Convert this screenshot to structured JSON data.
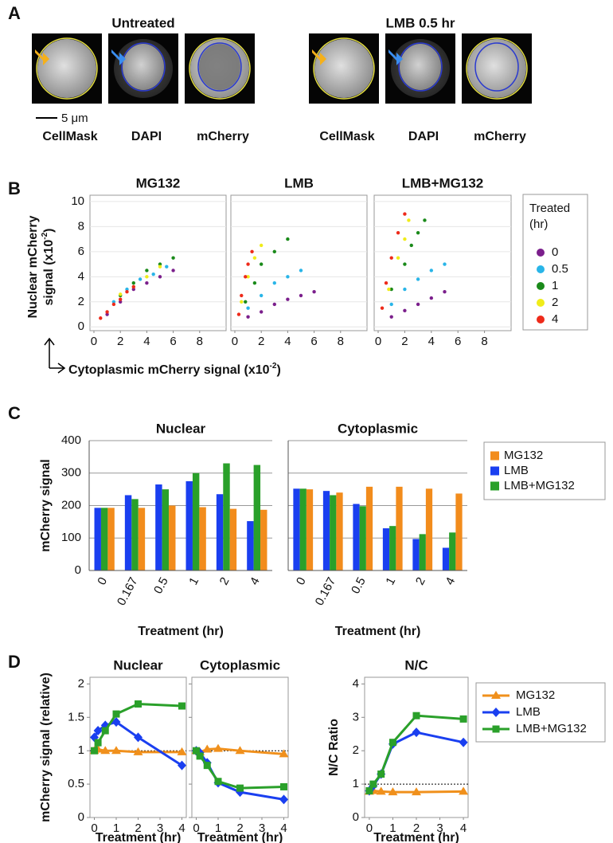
{
  "panels": [
    "A",
    "B",
    "C",
    "D"
  ],
  "panel_a": {
    "groups": [
      {
        "title": "Untreated",
        "channels": [
          "CellMask",
          "DAPI",
          "mCherry"
        ]
      },
      {
        "title": "LMB 0.5 hr",
        "channels": [
          "CellMask",
          "DAPI",
          "mCherry"
        ]
      }
    ],
    "scale_bar": "5 μm"
  },
  "chart_data": [
    {
      "type": "scatter",
      "title": "MG132",
      "xlim": [
        -0.3,
        10
      ],
      "xticks": [
        0,
        2,
        4,
        6,
        8
      ],
      "ylim": [
        -0.3,
        10.5
      ],
      "yticks": [
        0,
        2,
        4,
        6,
        8,
        10
      ],
      "grid": true,
      "y_label": {
        "line1": "Nuclear mCherry",
        "line2": "signal (x10",
        "sup": "-2",
        "end": ")"
      },
      "x_label": {
        "text": "Cytoplasmic mCherry signal (x10",
        "sup": "-2",
        "end": ")"
      },
      "legend": "outside right",
      "legend_title": [
        "Treated",
        "(hr)"
      ],
      "series": [
        {
          "name": "0",
          "color": "#7b1f8c",
          "x": [
            1,
            2,
            3,
            4,
            5,
            6
          ],
          "y": [
            1,
            2,
            3,
            3.5,
            4,
            4.5
          ]
        },
        {
          "name": "0.5",
          "color": "#29b5e8",
          "x": [
            1.5,
            2.5,
            3.5,
            4.5,
            5.5
          ],
          "y": [
            2,
            3,
            3.8,
            4.2,
            4.8
          ]
        },
        {
          "name": "1",
          "color": "#1a8a1a",
          "x": [
            2,
            3,
            4,
            5,
            6
          ],
          "y": [
            2.5,
            3.5,
            4.5,
            5,
            5.5
          ]
        },
        {
          "name": "2",
          "color": "#f0ec1a",
          "x": [
            2,
            3,
            4,
            5
          ],
          "y": [
            2.6,
            3.2,
            4,
            4.8
          ]
        },
        {
          "name": "4",
          "color": "#ee2a1a",
          "x": [
            0.5,
            1,
            1.5,
            2,
            2.5,
            3
          ],
          "y": [
            0.7,
            1.2,
            1.8,
            2.2,
            2.8,
            3.2
          ]
        }
      ]
    },
    {
      "type": "scatter",
      "title": "LMB",
      "xlim": [
        -0.3,
        10
      ],
      "xticks": [
        0,
        2,
        4,
        6,
        8
      ],
      "ylim": [
        -0.3,
        10.5
      ],
      "yticks": [
        0,
        2,
        4,
        6,
        8,
        10
      ],
      "grid": true,
      "show_ytick_labels": false,
      "series": [
        {
          "color": "#7b1f8c",
          "x": [
            1,
            2,
            3,
            4,
            5,
            6
          ],
          "y": [
            0.8,
            1.2,
            1.8,
            2.2,
            2.5,
            2.8
          ]
        },
        {
          "color": "#29b5e8",
          "x": [
            1,
            2,
            3,
            4,
            5
          ],
          "y": [
            1.5,
            2.5,
            3.5,
            4,
            4.5
          ]
        },
        {
          "color": "#1a8a1a",
          "x": [
            0.8,
            1.5,
            2,
            3,
            4
          ],
          "y": [
            2,
            3.5,
            5,
            6,
            7
          ]
        },
        {
          "color": "#f0ec1a",
          "x": [
            0.5,
            1,
            1.5,
            2
          ],
          "y": [
            2,
            4,
            5.5,
            6.5
          ]
        },
        {
          "color": "#ee2a1a",
          "x": [
            0.3,
            0.5,
            0.8,
            1,
            1.3
          ],
          "y": [
            1,
            2.5,
            4,
            5,
            6
          ]
        }
      ]
    },
    {
      "type": "scatter",
      "title": "LMB+MG132",
      "xlim": [
        -0.3,
        10
      ],
      "xticks": [
        0,
        2,
        4,
        6,
        8
      ],
      "ylim": [
        -0.3,
        10.5
      ],
      "yticks": [
        0,
        2,
        4,
        6,
        8,
        10
      ],
      "grid": true,
      "show_ytick_labels": false,
      "series": [
        {
          "color": "#7b1f8c",
          "x": [
            1,
            2,
            3,
            4,
            5
          ],
          "y": [
            0.8,
            1.3,
            1.8,
            2.3,
            2.8
          ]
        },
        {
          "color": "#29b5e8",
          "x": [
            1,
            2,
            3,
            4,
            5
          ],
          "y": [
            1.8,
            3,
            3.8,
            4.5,
            5
          ]
        },
        {
          "color": "#1a8a1a",
          "x": [
            1,
            2,
            2.5,
            3,
            3.5
          ],
          "y": [
            3,
            5,
            6.5,
            7.5,
            8.5
          ]
        },
        {
          "color": "#f0ec1a",
          "x": [
            0.8,
            1.5,
            2,
            2.3
          ],
          "y": [
            3,
            5.5,
            7,
            8.5
          ]
        },
        {
          "color": "#ee2a1a",
          "x": [
            0.3,
            0.6,
            1,
            1.5,
            2
          ],
          "y": [
            1.5,
            3.5,
            5.5,
            7.5,
            9
          ]
        }
      ]
    },
    {
      "type": "bar",
      "title": "Nuclear",
      "categories": [
        "0",
        "0.167",
        "0.5",
        "1",
        "2",
        "4"
      ],
      "ylim": [
        0,
        400
      ],
      "yticks": [
        0,
        100,
        200,
        300,
        400
      ],
      "grid": true,
      "y_label": "mCherry signal",
      "x_label": "Treatment (hr)",
      "bar_order": [
        1,
        2,
        0
      ],
      "legend": "outside right",
      "series": [
        {
          "name": "MG132",
          "color": "#f28c1c",
          "values": [
            193,
            193,
            200,
            195,
            190,
            187
          ]
        },
        {
          "name": "LMB",
          "color": "#1a3ff0",
          "values": [
            193,
            232,
            265,
            275,
            235,
            152
          ]
        },
        {
          "name": "LMB+MG132",
          "color": "#2aa02a",
          "values": [
            193,
            220,
            250,
            300,
            330,
            325
          ]
        }
      ]
    },
    {
      "type": "bar",
      "title": "Cytoplasmic",
      "categories": [
        "0",
        "0.167",
        "0.5",
        "1",
        "2",
        "4"
      ],
      "ylim": [
        0,
        400
      ],
      "yticks": [
        0,
        100,
        200,
        300,
        400
      ],
      "grid": true,
      "show_ytick_labels": false,
      "x_label": "Treatment (hr)",
      "bar_order": [
        1,
        2,
        0
      ],
      "series": [
        {
          "color": "#f28c1c",
          "values": [
            250,
            240,
            258,
            258,
            252,
            237
          ]
        },
        {
          "color": "#1a3ff0",
          "values": [
            252,
            245,
            205,
            130,
            97,
            70
          ]
        },
        {
          "color": "#2aa02a",
          "values": [
            252,
            232,
            198,
            137,
            112,
            117
          ]
        }
      ]
    },
    {
      "type": "line",
      "title": "Nuclear",
      "x": [
        0,
        0.167,
        0.5,
        1,
        2,
        4
      ],
      "xlim": [
        -0.2,
        4.2
      ],
      "xticks": [
        0,
        1,
        2,
        3,
        4
      ],
      "ylim": [
        0,
        2.1
      ],
      "yticks": [
        0,
        0.5,
        1,
        1.5,
        2
      ],
      "y_label": "mCherry signal (relative)",
      "x_label": "Treatment (hr)",
      "reference_line": 1,
      "series": [
        {
          "color": "#f0901c",
          "marker": "triangle",
          "values": [
            1,
            1.02,
            1,
            1,
            0.98,
            0.98
          ]
        },
        {
          "color": "#1a3ff0",
          "marker": "diamond",
          "values": [
            1.2,
            1.3,
            1.38,
            1.43,
            1.2,
            0.78
          ]
        },
        {
          "color": "#2aa02a",
          "marker": "square",
          "values": [
            1,
            1.12,
            1.3,
            1.55,
            1.7,
            1.67
          ]
        }
      ]
    },
    {
      "type": "line",
      "title": "Cytoplasmic",
      "x": [
        0,
        0.167,
        0.5,
        1,
        2,
        4
      ],
      "xlim": [
        -0.2,
        4.2
      ],
      "xticks": [
        0,
        1,
        2,
        3,
        4
      ],
      "ylim": [
        0,
        2.1
      ],
      "yticks": [
        0,
        0.5,
        1,
        1.5,
        2
      ],
      "show_ytick_labels": false,
      "x_label": "Treatment (hr)",
      "reference_line": 1,
      "series": [
        {
          "color": "#f0901c",
          "marker": "triangle",
          "values": [
            1,
            0.98,
            1.02,
            1.03,
            1,
            0.95
          ]
        },
        {
          "color": "#1a3ff0",
          "marker": "diamond",
          "values": [
            1,
            0.97,
            0.82,
            0.52,
            0.38,
            0.27
          ]
        },
        {
          "color": "#2aa02a",
          "marker": "square",
          "values": [
            1,
            0.92,
            0.78,
            0.54,
            0.44,
            0.46
          ]
        }
      ]
    },
    {
      "type": "line",
      "title": "N/C",
      "x": [
        0,
        0.167,
        0.5,
        1,
        2,
        4
      ],
      "xlim": [
        -0.2,
        4.2
      ],
      "xticks": [
        0,
        1,
        2,
        3,
        4
      ],
      "ylim": [
        0,
        4.2
      ],
      "yticks": [
        0,
        1,
        2,
        3,
        4
      ],
      "y_label": "N/C Ratio",
      "x_label": "Treatment (hr)",
      "reference_line": 1,
      "legend": "outside right",
      "series": [
        {
          "name": "MG132",
          "color": "#f0901c",
          "marker": "triangle",
          "values": [
            0.78,
            0.8,
            0.78,
            0.76,
            0.76,
            0.78
          ]
        },
        {
          "name": "LMB",
          "color": "#1a3ff0",
          "marker": "diamond",
          "values": [
            0.8,
            0.95,
            1.3,
            2.2,
            2.55,
            2.25
          ]
        },
        {
          "name": "LMB+MG132",
          "color": "#2aa02a",
          "marker": "square",
          "values": [
            0.8,
            1,
            1.3,
            2.25,
            3.05,
            2.95
          ]
        }
      ]
    }
  ]
}
